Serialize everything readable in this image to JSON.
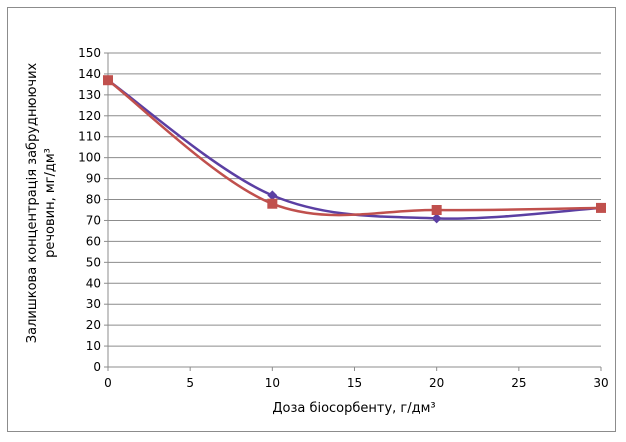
{
  "chart_data": {
    "type": "line",
    "xlabel": "Доза біосорбенту, г/дм³",
    "ylabel_line1": "Залишкова концентрація забруднюючих",
    "ylabel_line2": "речовин, мг/дм³",
    "x": [
      0,
      10,
      20,
      30
    ],
    "xlim": [
      0,
      30
    ],
    "ylim": [
      0,
      150
    ],
    "x_ticks": [
      "0",
      "5",
      "10",
      "15",
      "20",
      "25",
      "30"
    ],
    "y_ticks": [
      "0",
      "10",
      "20",
      "30",
      "40",
      "50",
      "60",
      "70",
      "80",
      "90",
      "100",
      "110",
      "120",
      "130",
      "140",
      "150"
    ],
    "grid": true,
    "legend": "none",
    "series": [
      {
        "values": [
          137,
          82,
          71,
          76
        ],
        "color": "#5b3fa3",
        "marker": "diamond",
        "smooth": true
      },
      {
        "values": [
          137,
          78,
          75,
          76
        ],
        "color": "#c0504d",
        "marker": "square",
        "smooth": true
      }
    ]
  }
}
